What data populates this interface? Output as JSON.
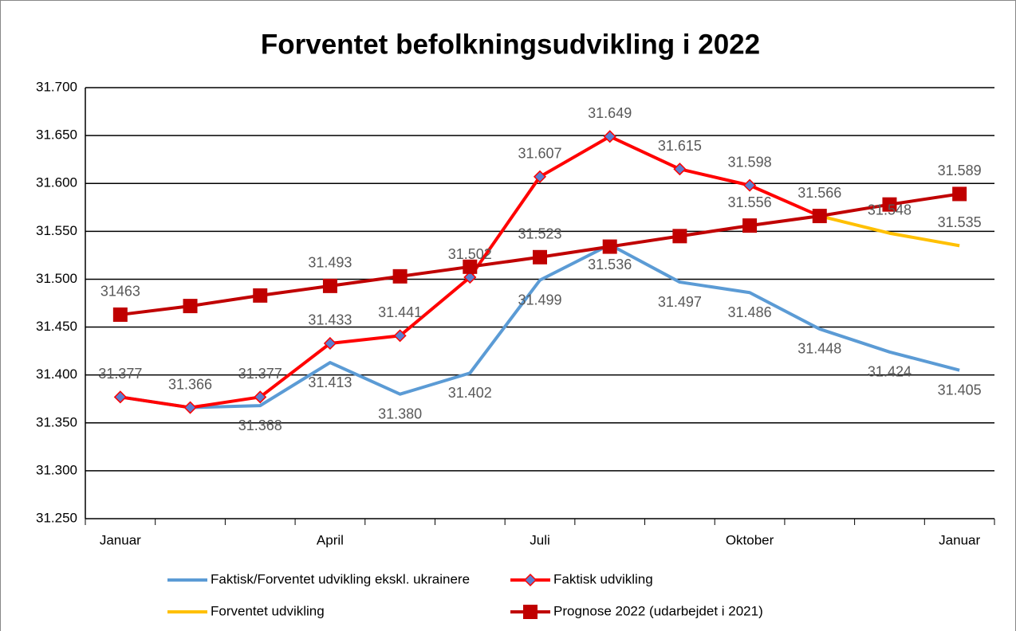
{
  "chart_data": {
    "type": "line",
    "title": "Forventet befolkningsudvikling i 2022",
    "categories": [
      "Januar",
      null,
      null,
      "April",
      null,
      null,
      "Juli",
      null,
      null,
      "Oktober",
      null,
      null,
      "Januar"
    ],
    "ylim": [
      31250,
      31700
    ],
    "yticks": [
      {
        "value": 31250,
        "label": "31.250"
      },
      {
        "value": 31300,
        "label": "31.300"
      },
      {
        "value": 31350,
        "label": "31.350"
      },
      {
        "value": 31400,
        "label": "31.400"
      },
      {
        "value": 31450,
        "label": "31.450"
      },
      {
        "value": 31500,
        "label": "31.500"
      },
      {
        "value": 31550,
        "label": "31.550"
      },
      {
        "value": 31600,
        "label": "31.600"
      },
      {
        "value": 31650,
        "label": "31.650"
      },
      {
        "value": 31700,
        "label": "31.700"
      }
    ],
    "grid": true,
    "legend": "bottom",
    "series": [
      {
        "name": "Faktisk/Forventet udvikling ekskl. ukrainere",
        "color": "#5b9bd5",
        "marker": null,
        "values": [
          31377,
          31366,
          31368,
          31413,
          31380,
          31402,
          31499,
          31536,
          31497,
          31486,
          31448,
          31424,
          31405
        ],
        "value_labels": [
          null,
          null,
          "31.368",
          "31.413",
          "31.380",
          "31.402",
          "31.499",
          "31.536",
          "31.497",
          "31.486",
          "31.448",
          "31.424",
          "31.405"
        ]
      },
      {
        "name": "Faktisk udvikling",
        "color": "#ff0000",
        "marker": "diamond",
        "values": [
          31377,
          31366,
          31377,
          31433,
          31441,
          31502,
          31607,
          31649,
          31615,
          31598,
          31566,
          null,
          null
        ],
        "value_labels": [
          "31.377",
          "31.366",
          "31.377",
          "31.433",
          "31.441",
          "31.502",
          "31.607",
          "31.649",
          "31.615",
          "31.598",
          "31.566",
          null,
          null
        ]
      },
      {
        "name": "Forventet udvikling",
        "color": "#ffc000",
        "marker": null,
        "values": [
          null,
          null,
          null,
          null,
          null,
          null,
          null,
          null,
          null,
          null,
          31566,
          31548,
          31535
        ],
        "value_labels": [
          null,
          null,
          null,
          null,
          null,
          null,
          null,
          null,
          null,
          null,
          null,
          "31.548",
          "31.535"
        ]
      },
      {
        "name": "Prognose 2022 (udarbejdet i 2021)",
        "color": "#c00000",
        "marker": "square",
        "values": [
          31463,
          31472,
          31483,
          31493,
          31503,
          31513,
          31523,
          31534,
          31545,
          31556,
          31566,
          31578,
          31589
        ],
        "value_labels": [
          "31463",
          null,
          null,
          "31.493",
          null,
          null,
          "31.523",
          null,
          null,
          "31.556",
          null,
          null,
          "31.589"
        ]
      }
    ]
  }
}
